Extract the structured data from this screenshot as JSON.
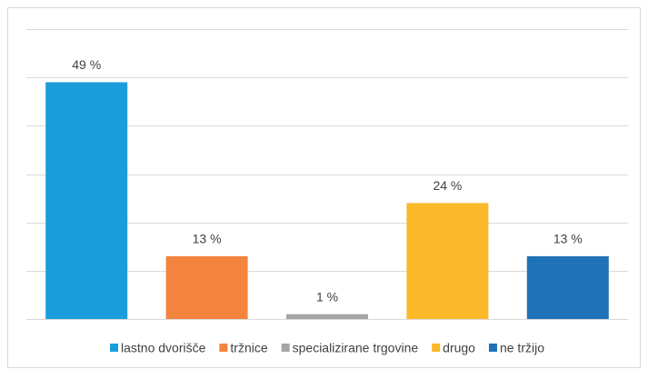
{
  "chart_data": {
    "type": "bar",
    "categories": [
      "lastno dvorišče",
      "tržnice",
      "specializirane trgovine",
      "drugo",
      "ne tržijo"
    ],
    "values": [
      49,
      13,
      1,
      24,
      13
    ],
    "value_labels": [
      "49 %",
      "13 %",
      "1 %",
      "24 %",
      "13 %"
    ],
    "colors": [
      "#1a9edb",
      "#f3843e",
      "#a5a5a5",
      "#fbb829",
      "#1f72b8"
    ],
    "ylim": [
      0,
      60
    ],
    "yticks": [
      0,
      10,
      20,
      30,
      40,
      50,
      60
    ],
    "grid": true,
    "legend": "bottom"
  }
}
